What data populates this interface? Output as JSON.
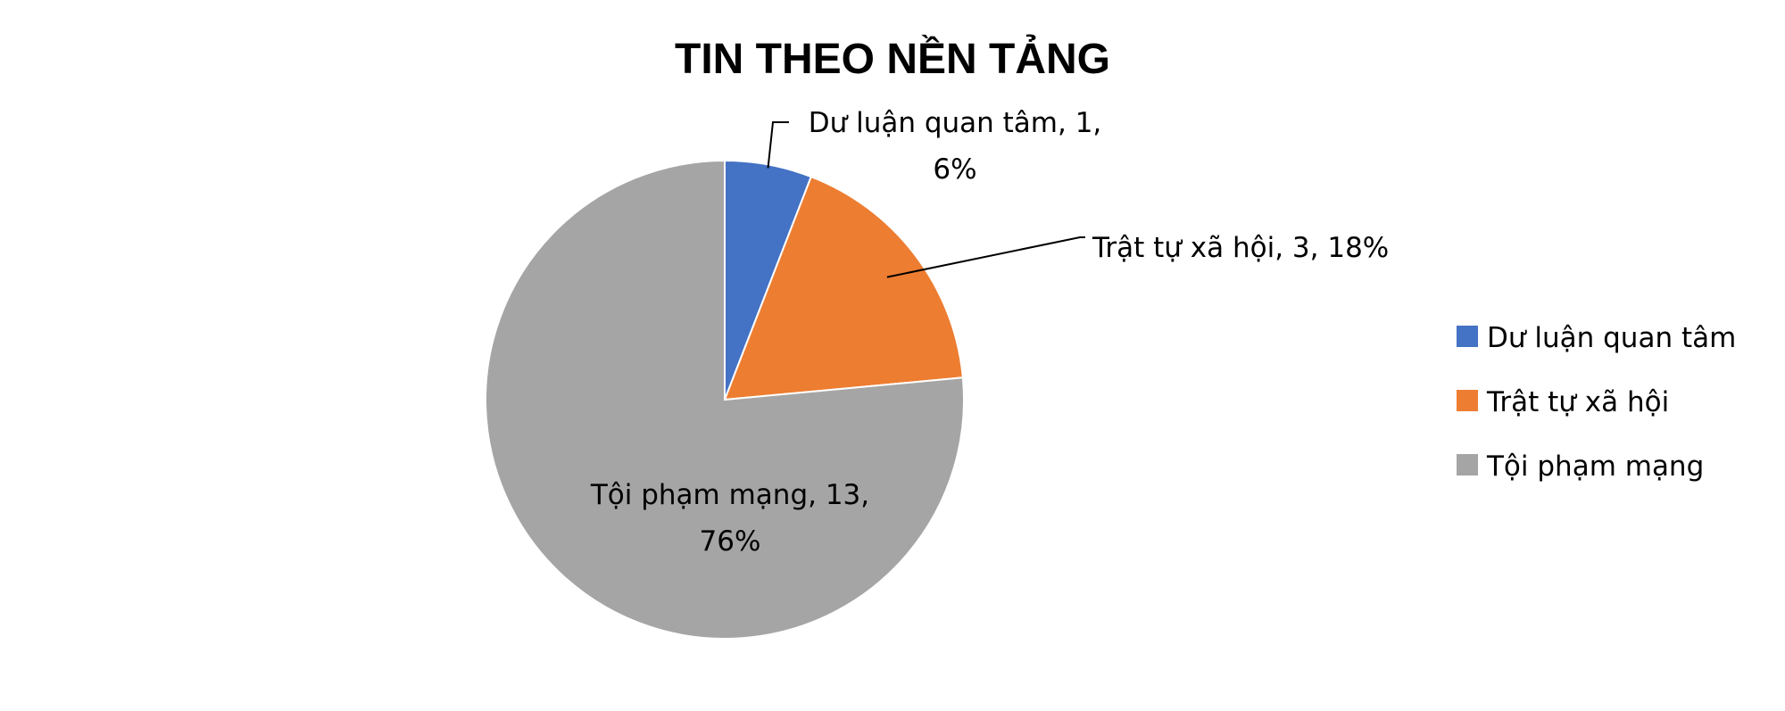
{
  "chart_data": {
    "type": "pie",
    "title": "TIN THEO NỀN TẢNG",
    "categories": [
      "Dư luận quan tâm",
      "Trật tự xã hội",
      "Tội phạm mạng"
    ],
    "values": [
      1,
      3,
      13
    ],
    "percent_labels": [
      "6%",
      "18%",
      "76%"
    ],
    "data_labels": [
      [
        "Dư luận quan tâm, 1,",
        "6%"
      ],
      [
        "Trật tự xã hội, 3, 18%"
      ],
      [
        "Tội phạm mạng, 13,",
        "76%"
      ]
    ],
    "colors": [
      "#4472C4",
      "#ED7D31",
      "#A5A5A5"
    ],
    "legend": {
      "position": "right",
      "entries": [
        "Dư luận quan tâm",
        "Trật tự xã hội",
        "Tội phạm mạng"
      ]
    }
  }
}
